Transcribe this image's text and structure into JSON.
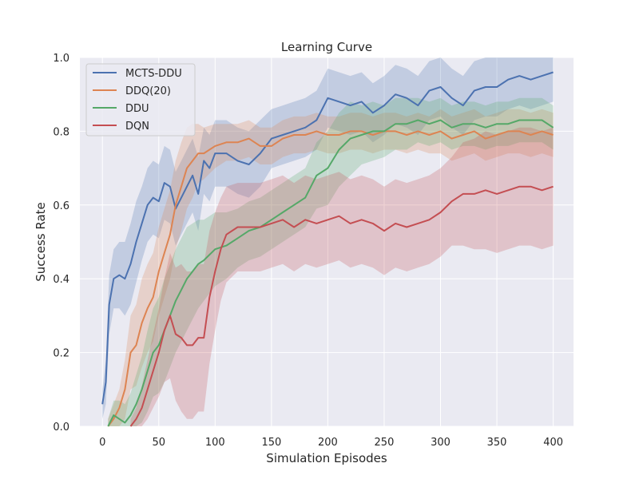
{
  "chart_data": {
    "type": "line",
    "title": "Learning Curve",
    "xlabel": "Simulation Episodes",
    "ylabel": "Success Rate",
    "xlim": [
      -20,
      418
    ],
    "ylim": [
      0,
      1.0
    ],
    "xticks": [
      0,
      50,
      100,
      150,
      200,
      250,
      300,
      350,
      400
    ],
    "xtick_labels": [
      "0",
      "50",
      "100",
      "150",
      "200",
      "250",
      "300",
      "350",
      "400"
    ],
    "yticks": [
      0,
      0.2,
      0.4,
      0.6,
      0.8,
      1.0
    ],
    "ytick_labels": [
      "0.0",
      "0.2",
      "0.4",
      "0.6",
      "0.8",
      "1.0"
    ],
    "grid": true,
    "legend_position": "top-left",
    "series": [
      {
        "name": "MCTS-DDU",
        "color": "#4c72b0",
        "points": [
          [
            0,
            0.06
          ],
          [
            3,
            0.12
          ],
          [
            6,
            0.33
          ],
          [
            10,
            0.4
          ],
          [
            15,
            0.41
          ],
          [
            20,
            0.4
          ],
          [
            25,
            0.44
          ],
          [
            30,
            0.5
          ],
          [
            35,
            0.55
          ],
          [
            40,
            0.6
          ],
          [
            45,
            0.62
          ],
          [
            50,
            0.61
          ],
          [
            55,
            0.66
          ],
          [
            60,
            0.65
          ],
          [
            65,
            0.59
          ],
          [
            70,
            0.62
          ],
          [
            75,
            0.65
          ],
          [
            80,
            0.68
          ],
          [
            85,
            0.63
          ],
          [
            90,
            0.72
          ],
          [
            95,
            0.7
          ],
          [
            100,
            0.74
          ],
          [
            110,
            0.74
          ],
          [
            120,
            0.72
          ],
          [
            130,
            0.71
          ],
          [
            140,
            0.74
          ],
          [
            150,
            0.78
          ],
          [
            160,
            0.79
          ],
          [
            170,
            0.8
          ],
          [
            180,
            0.81
          ],
          [
            190,
            0.83
          ],
          [
            200,
            0.89
          ],
          [
            210,
            0.88
          ],
          [
            220,
            0.87
          ],
          [
            230,
            0.88
          ],
          [
            240,
            0.85
          ],
          [
            250,
            0.87
          ],
          [
            260,
            0.9
          ],
          [
            270,
            0.89
          ],
          [
            280,
            0.87
          ],
          [
            290,
            0.91
          ],
          [
            300,
            0.92
          ],
          [
            310,
            0.89
          ],
          [
            320,
            0.87
          ],
          [
            330,
            0.91
          ],
          [
            340,
            0.92
          ],
          [
            350,
            0.92
          ],
          [
            360,
            0.94
          ],
          [
            370,
            0.95
          ],
          [
            380,
            0.94
          ],
          [
            390,
            0.95
          ],
          [
            400,
            0.96
          ]
        ],
        "band": [
          0.04,
          0.06,
          0.08,
          0.08,
          0.09,
          0.1,
          0.11,
          0.11,
          0.1,
          0.1,
          0.1,
          0.1,
          0.1,
          0.1,
          0.1,
          0.1,
          0.1,
          0.1,
          0.1,
          0.09,
          0.09,
          0.09,
          0.09,
          0.09,
          0.09,
          0.09,
          0.08,
          0.08,
          0.08,
          0.08,
          0.08,
          0.08,
          0.08,
          0.08,
          0.08,
          0.08,
          0.08,
          0.08,
          0.08,
          0.08,
          0.08,
          0.08,
          0.08,
          0.08,
          0.08,
          0.08,
          0.08,
          0.08,
          0.08,
          0.08,
          0.08,
          0.08
        ]
      },
      {
        "name": "DDQ(20)",
        "color": "#dd8452",
        "points": [
          [
            5,
            0.0
          ],
          [
            10,
            0.02
          ],
          [
            15,
            0.05
          ],
          [
            20,
            0.1
          ],
          [
            25,
            0.2
          ],
          [
            30,
            0.22
          ],
          [
            35,
            0.28
          ],
          [
            40,
            0.32
          ],
          [
            45,
            0.35
          ],
          [
            50,
            0.42
          ],
          [
            55,
            0.47
          ],
          [
            60,
            0.52
          ],
          [
            65,
            0.6
          ],
          [
            70,
            0.65
          ],
          [
            75,
            0.7
          ],
          [
            80,
            0.72
          ],
          [
            85,
            0.74
          ],
          [
            90,
            0.74
          ],
          [
            100,
            0.76
          ],
          [
            110,
            0.77
          ],
          [
            120,
            0.77
          ],
          [
            130,
            0.78
          ],
          [
            140,
            0.76
          ],
          [
            150,
            0.76
          ],
          [
            160,
            0.78
          ],
          [
            170,
            0.79
          ],
          [
            180,
            0.79
          ],
          [
            190,
            0.8
          ],
          [
            200,
            0.79
          ],
          [
            210,
            0.79
          ],
          [
            220,
            0.8
          ],
          [
            230,
            0.8
          ],
          [
            240,
            0.79
          ],
          [
            250,
            0.8
          ],
          [
            260,
            0.8
          ],
          [
            270,
            0.79
          ],
          [
            280,
            0.8
          ],
          [
            290,
            0.79
          ],
          [
            300,
            0.8
          ],
          [
            310,
            0.78
          ],
          [
            320,
            0.79
          ],
          [
            330,
            0.8
          ],
          [
            340,
            0.78
          ],
          [
            350,
            0.79
          ],
          [
            360,
            0.8
          ],
          [
            370,
            0.8
          ],
          [
            380,
            0.79
          ],
          [
            390,
            0.8
          ],
          [
            400,
            0.79
          ]
        ],
        "band": [
          0.02,
          0.04,
          0.05,
          0.08,
          0.1,
          0.11,
          0.12,
          0.12,
          0.12,
          0.12,
          0.12,
          0.12,
          0.12,
          0.12,
          0.11,
          0.1,
          0.08,
          0.07,
          0.06,
          0.05,
          0.05,
          0.05,
          0.05,
          0.05,
          0.05,
          0.05,
          0.05,
          0.05,
          0.05,
          0.05,
          0.05,
          0.05,
          0.05,
          0.05,
          0.05,
          0.05,
          0.05,
          0.05,
          0.06,
          0.06,
          0.06,
          0.06,
          0.06,
          0.06,
          0.06,
          0.06,
          0.06,
          0.06,
          0.06
        ]
      },
      {
        "name": "DDU",
        "color": "#55a868",
        "points": [
          [
            5,
            0.0
          ],
          [
            10,
            0.03
          ],
          [
            15,
            0.02
          ],
          [
            20,
            0.01
          ],
          [
            25,
            0.03
          ],
          [
            30,
            0.06
          ],
          [
            35,
            0.1
          ],
          [
            40,
            0.15
          ],
          [
            45,
            0.2
          ],
          [
            50,
            0.22
          ],
          [
            55,
            0.26
          ],
          [
            60,
            0.3
          ],
          [
            65,
            0.34
          ],
          [
            70,
            0.37
          ],
          [
            75,
            0.4
          ],
          [
            80,
            0.42
          ],
          [
            85,
            0.44
          ],
          [
            90,
            0.45
          ],
          [
            100,
            0.48
          ],
          [
            110,
            0.49
          ],
          [
            120,
            0.51
          ],
          [
            130,
            0.53
          ],
          [
            140,
            0.54
          ],
          [
            150,
            0.56
          ],
          [
            160,
            0.58
          ],
          [
            170,
            0.6
          ],
          [
            180,
            0.62
          ],
          [
            190,
            0.68
          ],
          [
            200,
            0.7
          ],
          [
            210,
            0.75
          ],
          [
            220,
            0.78
          ],
          [
            230,
            0.79
          ],
          [
            240,
            0.8
          ],
          [
            250,
            0.8
          ],
          [
            260,
            0.82
          ],
          [
            270,
            0.82
          ],
          [
            280,
            0.83
          ],
          [
            290,
            0.82
          ],
          [
            300,
            0.83
          ],
          [
            310,
            0.81
          ],
          [
            320,
            0.82
          ],
          [
            330,
            0.82
          ],
          [
            340,
            0.81
          ],
          [
            350,
            0.82
          ],
          [
            360,
            0.82
          ],
          [
            370,
            0.83
          ],
          [
            380,
            0.83
          ],
          [
            390,
            0.83
          ],
          [
            400,
            0.81
          ]
        ],
        "band": [
          0.02,
          0.04,
          0.05,
          0.05,
          0.06,
          0.08,
          0.09,
          0.11,
          0.12,
          0.13,
          0.14,
          0.14,
          0.14,
          0.14,
          0.14,
          0.13,
          0.12,
          0.11,
          0.1,
          0.09,
          0.08,
          0.08,
          0.08,
          0.08,
          0.08,
          0.08,
          0.08,
          0.09,
          0.1,
          0.1,
          0.1,
          0.08,
          0.08,
          0.07,
          0.07,
          0.07,
          0.06,
          0.06,
          0.06,
          0.06,
          0.06,
          0.06,
          0.06,
          0.06,
          0.06,
          0.06,
          0.06,
          0.06,
          0.06
        ]
      },
      {
        "name": "DQN",
        "color": "#c44e52",
        "points": [
          [
            25,
            0.0
          ],
          [
            30,
            0.02
          ],
          [
            35,
            0.05
          ],
          [
            40,
            0.1
          ],
          [
            45,
            0.15
          ],
          [
            50,
            0.2
          ],
          [
            55,
            0.26
          ],
          [
            60,
            0.3
          ],
          [
            65,
            0.25
          ],
          [
            70,
            0.24
          ],
          [
            75,
            0.22
          ],
          [
            80,
            0.22
          ],
          [
            85,
            0.24
          ],
          [
            90,
            0.24
          ],
          [
            95,
            0.35
          ],
          [
            100,
            0.42
          ],
          [
            105,
            0.48
          ],
          [
            110,
            0.52
          ],
          [
            120,
            0.54
          ],
          [
            130,
            0.54
          ],
          [
            140,
            0.54
          ],
          [
            150,
            0.55
          ],
          [
            160,
            0.56
          ],
          [
            170,
            0.54
          ],
          [
            180,
            0.56
          ],
          [
            190,
            0.55
          ],
          [
            200,
            0.56
          ],
          [
            210,
            0.57
          ],
          [
            220,
            0.55
          ],
          [
            230,
            0.56
          ],
          [
            240,
            0.55
          ],
          [
            250,
            0.53
          ],
          [
            260,
            0.55
          ],
          [
            270,
            0.54
          ],
          [
            280,
            0.55
          ],
          [
            290,
            0.56
          ],
          [
            300,
            0.58
          ],
          [
            310,
            0.61
          ],
          [
            320,
            0.63
          ],
          [
            330,
            0.63
          ],
          [
            340,
            0.64
          ],
          [
            350,
            0.63
          ],
          [
            360,
            0.64
          ],
          [
            370,
            0.65
          ],
          [
            380,
            0.65
          ],
          [
            390,
            0.64
          ],
          [
            400,
            0.65
          ]
        ],
        "band": [
          0.02,
          0.03,
          0.06,
          0.08,
          0.1,
          0.12,
          0.14,
          0.17,
          0.18,
          0.2,
          0.2,
          0.2,
          0.2,
          0.2,
          0.18,
          0.16,
          0.14,
          0.13,
          0.12,
          0.12,
          0.12,
          0.12,
          0.12,
          0.12,
          0.12,
          0.12,
          0.12,
          0.12,
          0.12,
          0.12,
          0.12,
          0.12,
          0.12,
          0.12,
          0.12,
          0.12,
          0.12,
          0.12,
          0.14,
          0.15,
          0.16,
          0.16,
          0.16,
          0.16,
          0.16,
          0.16,
          0.16
        ]
      }
    ]
  }
}
